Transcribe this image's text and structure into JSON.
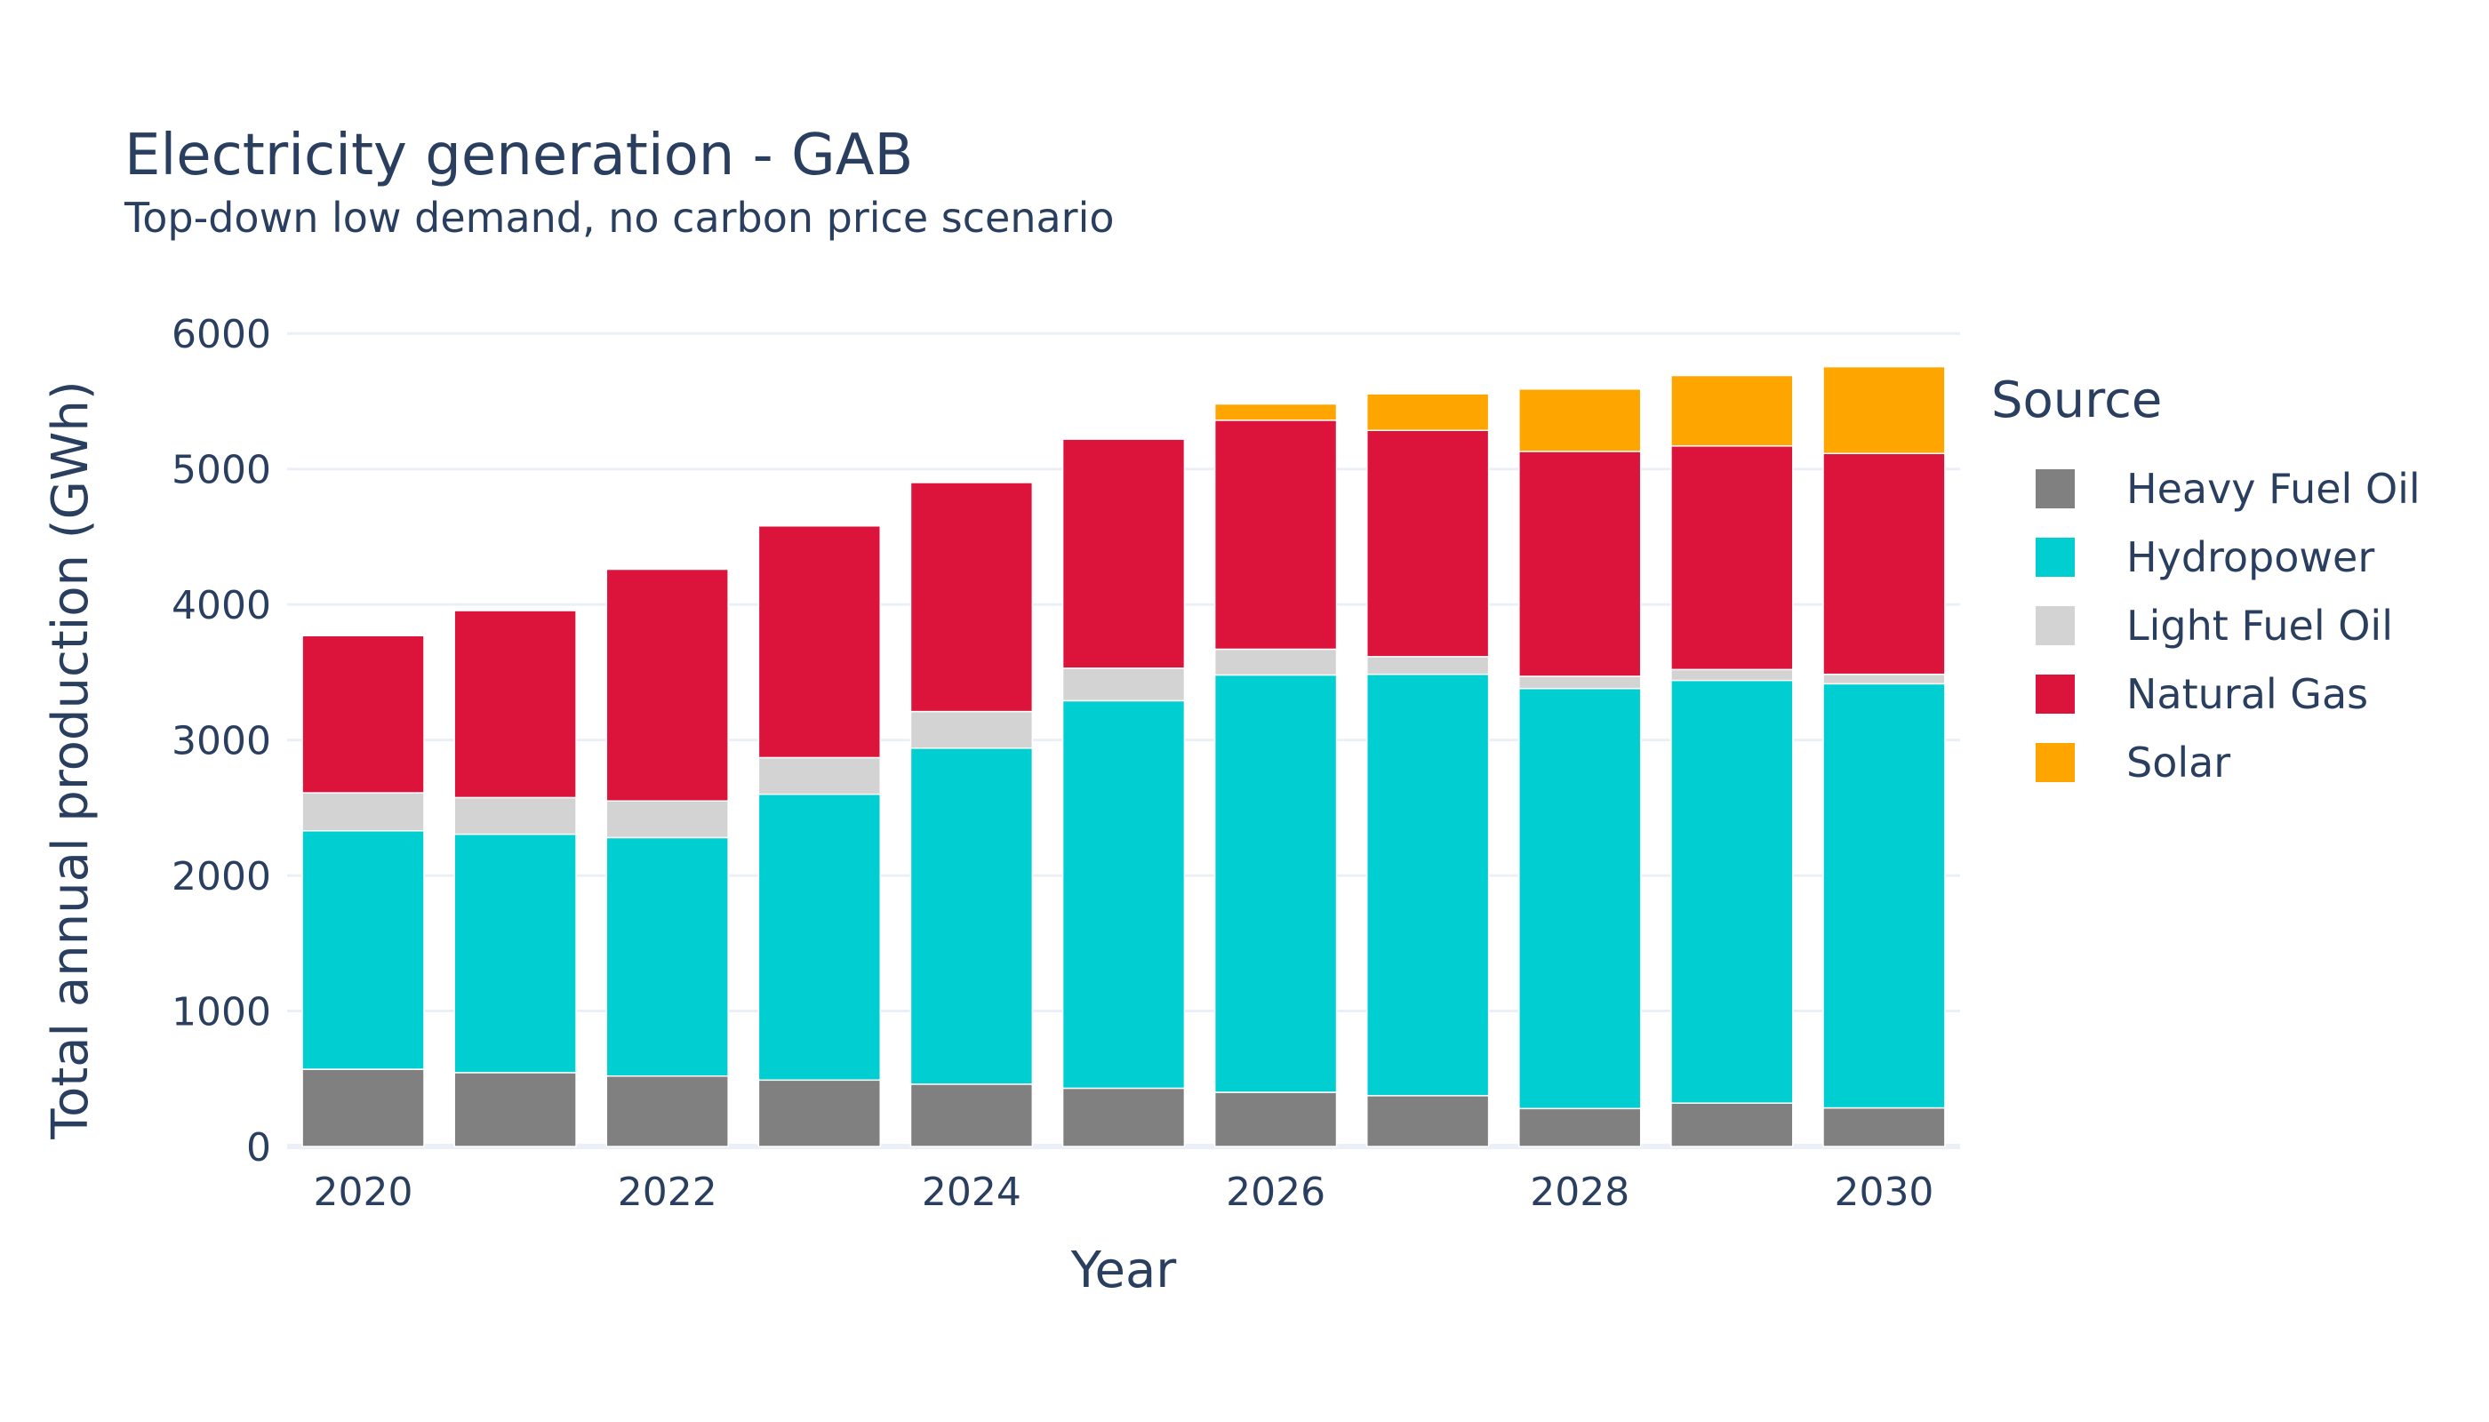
{
  "chart_data": {
    "type": "bar",
    "stacked": true,
    "title": "Electricity generation - GAB",
    "subtitle": "Top-down low demand, no carbon price scenario",
    "xlabel": "Year",
    "ylabel": "Total annual production (GWh)",
    "x": [
      2020,
      2021,
      2022,
      2023,
      2024,
      2025,
      2026,
      2027,
      2028,
      2029,
      2030
    ],
    "x_tick_labels": [
      "2020",
      "2022",
      "2024",
      "2026",
      "2028",
      "2030"
    ],
    "x_tick_values": [
      2020,
      2022,
      2024,
      2026,
      2028,
      2030
    ],
    "ylim": [
      0,
      6100
    ],
    "y_tick_values": [
      0,
      1000,
      2000,
      3000,
      4000,
      5000,
      6000
    ],
    "y_tick_labels": [
      "0",
      "1000",
      "2000",
      "3000",
      "4000",
      "5000",
      "6000"
    ],
    "grid": true,
    "legend_title": "Source",
    "legend_position": "right",
    "series": [
      {
        "name": "Heavy Fuel Oil",
        "color": "#808080",
        "values": [
          570,
          545,
          520,
          490,
          460,
          430,
          400,
          375,
          280,
          320,
          285
        ]
      },
      {
        "name": "Hydropower",
        "color": "#00CED1",
        "values": [
          1760,
          1760,
          1760,
          2110,
          2480,
          2860,
          3080,
          3110,
          3100,
          3120,
          3130
        ]
      },
      {
        "name": "Light Fuel Oil",
        "color": "#D3D3D3",
        "values": [
          280,
          270,
          270,
          270,
          270,
          240,
          190,
          130,
          90,
          80,
          70
        ]
      },
      {
        "name": "Natural Gas",
        "color": "#DC143C",
        "values": [
          1160,
          1380,
          1710,
          1710,
          1690,
          1690,
          1690,
          1670,
          1660,
          1650,
          1630
        ]
      },
      {
        "name": "Solar",
        "color": "#FFA500",
        "values": [
          0,
          0,
          0,
          0,
          0,
          0,
          120,
          270,
          460,
          520,
          640
        ]
      }
    ]
  }
}
